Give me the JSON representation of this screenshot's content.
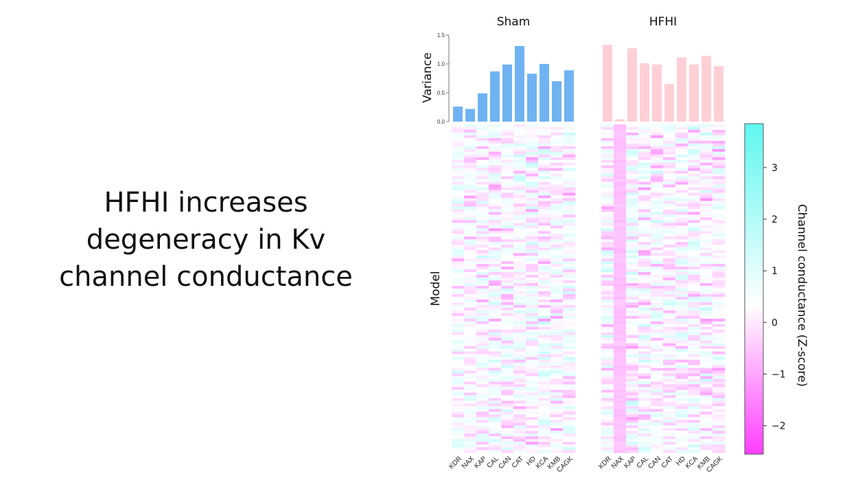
{
  "slide": {
    "title_lines": [
      "HFHI increases",
      "degeneracy in Kv",
      "channel conductance"
    ]
  },
  "chart_data": {
    "type": "heatmap",
    "panels": [
      {
        "title": "Sham",
        "bar_color": "#6fb3f2",
        "variance": [
          0.26,
          0.22,
          0.49,
          0.87,
          0.99,
          1.31,
          0.83,
          1.0,
          0.7,
          0.89
        ]
      },
      {
        "title": "HFHI",
        "bar_color": "#ffcfd6",
        "variance": [
          1.33,
          0.04,
          1.27,
          1.01,
          0.99,
          0.65,
          1.11,
          0.99,
          1.14,
          0.96
        ]
      }
    ],
    "channels": [
      "KDR",
      "NAX",
      "KAP",
      "CAL",
      "CAN",
      "CAT",
      "HD",
      "KCA",
      "KMB",
      "CAGK"
    ],
    "variance_axis": {
      "label": "Variance",
      "ylim": [
        0.0,
        1.5
      ],
      "ticks": [
        "0.0",
        "0.5",
        "1.0",
        "1.5"
      ]
    },
    "heatmap_ylabel": "Model",
    "n_models": 120,
    "colorbar": {
      "label": "Channel conductance (Z-score)",
      "range": [
        -2.55,
        3.85
      ],
      "ticks": [
        3,
        2,
        1,
        0,
        -1,
        -2
      ],
      "tick_labels": [
        "3",
        "2",
        "1",
        "0",
        "−1",
        "−2"
      ],
      "colors": {
        "high": "#5ef7f0",
        "mid": "#ffffff",
        "low": "#ff3dff"
      }
    }
  }
}
